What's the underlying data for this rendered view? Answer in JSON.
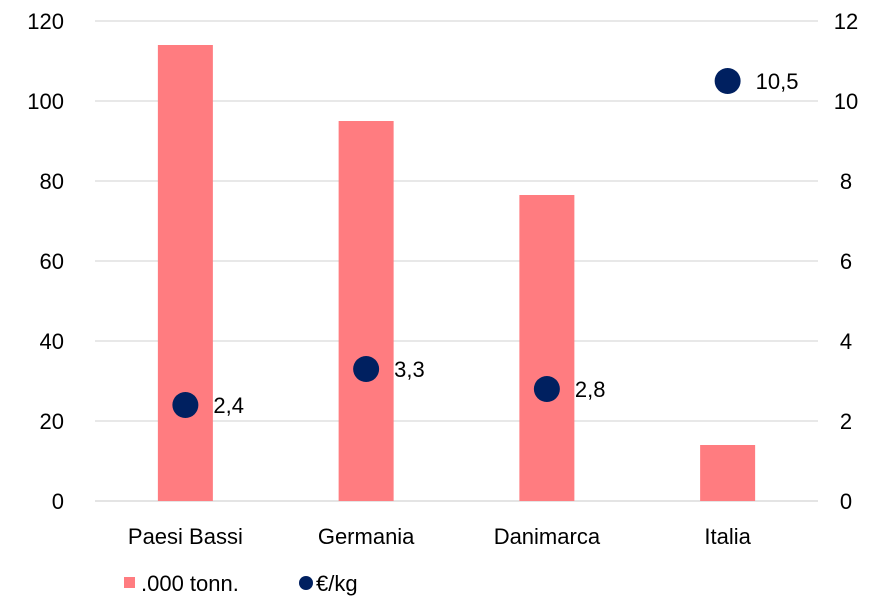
{
  "chart_data": {
    "type": "bar",
    "categories": [
      "Paesi Bassi",
      "Germania",
      "Danimarca",
      "Italia"
    ],
    "series": [
      {
        "name": ".000 tonn.",
        "kind": "bar",
        "axis": "left",
        "values": [
          114,
          95,
          76.5,
          14
        ],
        "color": "#ff7c80"
      },
      {
        "name": "€/kg",
        "kind": "scatter",
        "axis": "right",
        "values": [
          2.4,
          3.3,
          2.8,
          10.5
        ],
        "labels": [
          "2,4",
          "3,3",
          "2,8",
          "10,5"
        ],
        "color": "#002060"
      }
    ],
    "y_left": {
      "min": 0,
      "max": 120,
      "ticks": [
        "0",
        "20",
        "40",
        "60",
        "80",
        "100",
        "120"
      ]
    },
    "y_right": {
      "min": 0,
      "max": 12,
      "ticks": [
        "0",
        "2",
        "4",
        "6",
        "8",
        "10",
        "12"
      ]
    },
    "grid": true,
    "legend_position": "bottom-left"
  }
}
